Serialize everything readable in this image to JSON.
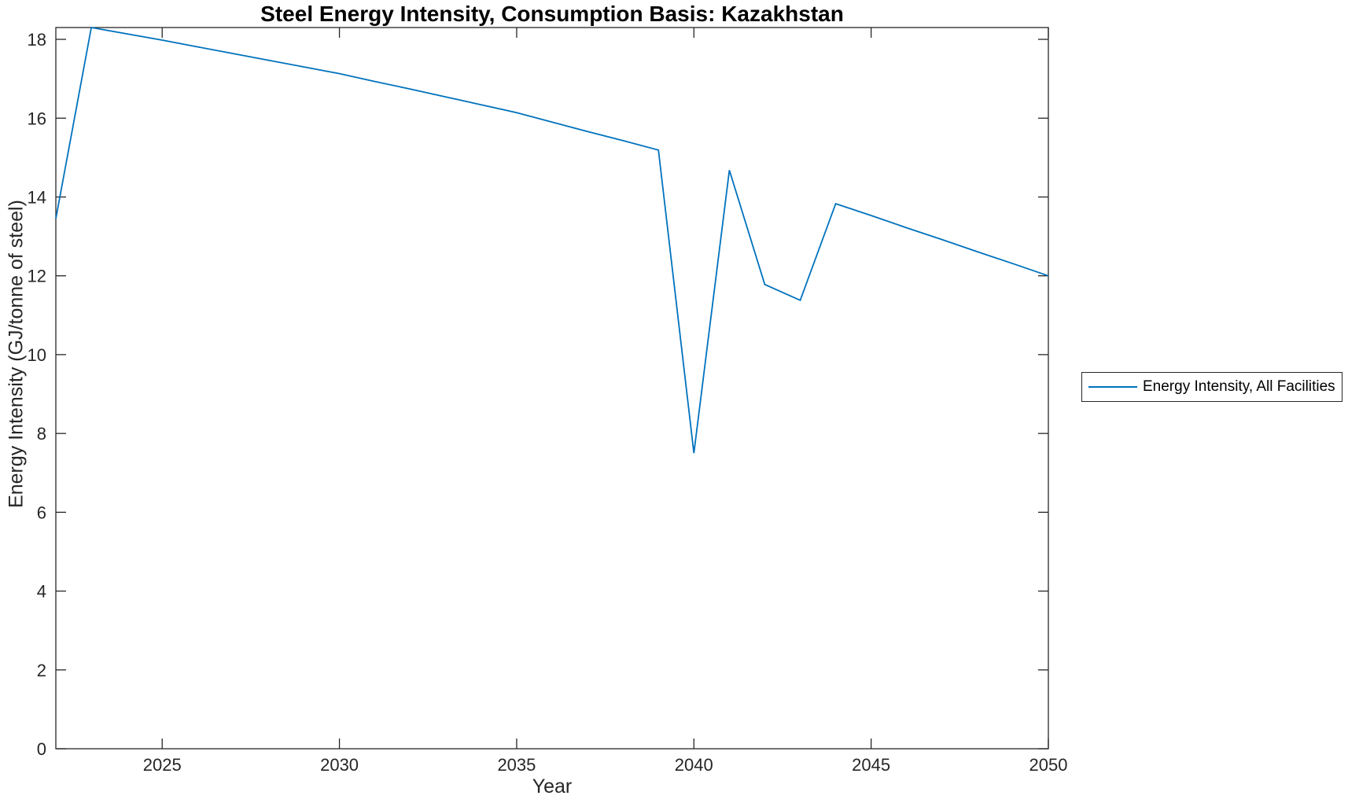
{
  "title": "Steel Energy Intensity, Consumption Basis: Kazakhstan",
  "colors": {
    "line": "#0072BD",
    "axis": "#262626",
    "title_text": "#000000",
    "background": "#ffffff"
  },
  "legend": {
    "items": [
      {
        "label": "Energy Intensity, All Facilities",
        "color": "#0072BD"
      }
    ],
    "position": "right-outside"
  },
  "chart_data": {
    "type": "line",
    "title": "Steel Energy Intensity, Consumption Basis: Kazakhstan",
    "xlabel": "Year",
    "ylabel": "Energy Intensity (GJ/tonne of steel)",
    "xlim": [
      2022,
      2050
    ],
    "ylim": [
      0,
      18.3
    ],
    "x_ticks": [
      2025,
      2030,
      2035,
      2040,
      2045,
      2050
    ],
    "y_ticks": [
      0,
      2,
      4,
      6,
      8,
      10,
      12,
      14,
      16,
      18
    ],
    "grid": false,
    "legend_position": "right-outside",
    "series": [
      {
        "name": "Energy Intensity, All Facilities",
        "color": "#0072BD",
        "x": [
          2022,
          2023,
          2024,
          2025,
          2026,
          2027,
          2028,
          2029,
          2030,
          2031,
          2032,
          2033,
          2034,
          2035,
          2036,
          2037,
          2038,
          2039,
          2040,
          2041,
          2042,
          2043,
          2044,
          2045,
          2046,
          2047,
          2048,
          2049,
          2050
        ],
        "values": [
          13.45,
          18.3,
          18.14,
          17.98,
          17.81,
          17.64,
          17.47,
          17.3,
          17.13,
          16.93,
          16.74,
          16.54,
          16.34,
          16.14,
          15.9,
          15.66,
          15.43,
          15.19,
          7.5,
          14.68,
          11.78,
          11.38,
          13.83,
          13.53,
          13.22,
          12.92,
          12.61,
          12.31,
          12.0
        ]
      }
    ]
  }
}
